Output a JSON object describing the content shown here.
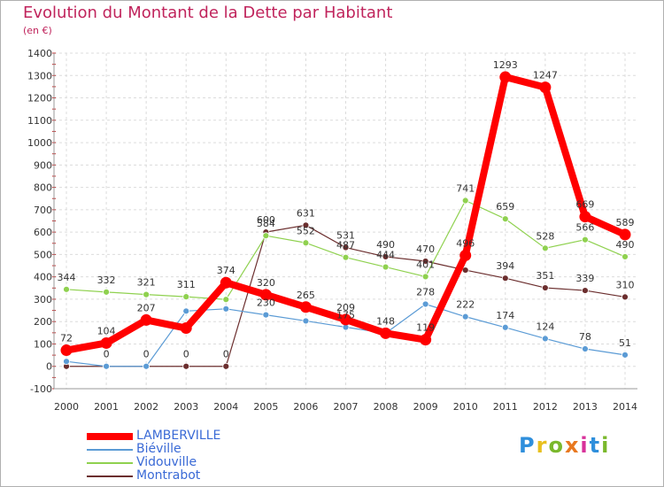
{
  "title": "Evolution du Montant de la Dette par Habitant",
  "subtitle": "(en €)",
  "logo": {
    "letters": [
      "P",
      "r",
      "o",
      "x",
      "i",
      "t",
      "i"
    ],
    "colors": [
      "#2f8fdc",
      "#e8c01f",
      "#7ab82c",
      "#e8781f",
      "#d8329a",
      "#2f8fdc",
      "#7ab82c"
    ]
  },
  "chart_data": {
    "type": "line",
    "title": "Evolution du Montant de la Dette par Habitant",
    "subtitle": "(en €)",
    "x": [
      "2000",
      "2001",
      "2002",
      "2003",
      "2004",
      "2005",
      "2006",
      "2007",
      "2008",
      "2009",
      "2010",
      "2011",
      "2012",
      "2013",
      "2014"
    ],
    "yticks": [
      -100,
      0,
      100,
      200,
      300,
      400,
      500,
      600,
      700,
      800,
      900,
      1000,
      1100,
      1200,
      1300,
      1400
    ],
    "ylim": [
      -100,
      1400
    ],
    "grid": true,
    "legend_position": "bottom-left",
    "series": [
      {
        "name": "LAMBERVILLE",
        "color": "#ff0000",
        "values": [
          72,
          104,
          207,
          171,
          374,
          320,
          265,
          209,
          148,
          119,
          496,
          1293,
          1247,
          669,
          589
        ],
        "labels": [
          "72",
          "104",
          "207",
          "",
          "374",
          "320",
          "265",
          "209",
          "148",
          "119",
          "496",
          "1293",
          "1247",
          "669",
          "589"
        ]
      },
      {
        "name": "Biéville",
        "color": "#5b9bd5",
        "values": [
          22,
          0,
          0,
          247,
          257,
          230,
          203,
          175,
          148,
          278,
          222,
          174,
          124,
          78,
          51
        ],
        "labels": [
          "",
          "0",
          "0",
          "",
          "",
          "230",
          "",
          "175",
          "",
          "278",
          "222",
          "174",
          "124",
          "78",
          "51"
        ]
      },
      {
        "name": "Vidouville",
        "color": "#8fd14f",
        "values": [
          344,
          332,
          321,
          311,
          299,
          584,
          552,
          487,
          444,
          401,
          741,
          659,
          528,
          566,
          490
        ],
        "labels": [
          "344",
          "332",
          "321",
          "311",
          "",
          "584",
          "552",
          "487",
          "444",
          "401",
          "741",
          "659",
          "528",
          "566",
          "490"
        ]
      },
      {
        "name": "Montrabot",
        "color": "#6b2e2e",
        "values": [
          0,
          0,
          0,
          0,
          0,
          600,
          631,
          531,
          490,
          470,
          430,
          394,
          351,
          339,
          310
        ],
        "labels": [
          "",
          "",
          "",
          "0",
          "0",
          "600",
          "631",
          "531",
          "490",
          "470",
          "",
          "394",
          "351",
          "339",
          "310"
        ]
      }
    ]
  }
}
